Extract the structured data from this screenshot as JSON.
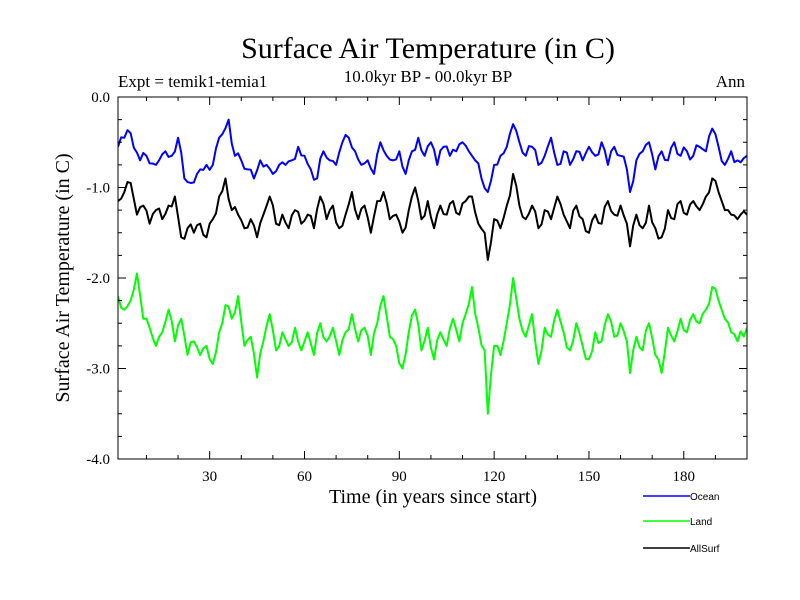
{
  "chart_data": {
    "type": "line",
    "title": "Surface Air Temperature (in C)",
    "subtitle_left": "Expt = temik1-temia1",
    "subtitle_center": "10.0kyr BP - 00.0kyr BP",
    "subtitle_right": "Ann",
    "xlabel": "Time (in years since start)",
    "ylabel": "Surface Air Temperature (in C)",
    "xlim": [
      1,
      200
    ],
    "ylim": [
      -4.0,
      0.0
    ],
    "xticks": [
      30,
      60,
      90,
      120,
      150,
      180
    ],
    "xtick_labels": [
      "30",
      "60",
      "90",
      "120",
      "150",
      "180"
    ],
    "yticks": [
      0.0,
      -1.0,
      -2.0,
      -3.0,
      -4.0
    ],
    "ytick_labels": [
      "0.0",
      "-1.0",
      "-2.0",
      "-3.0",
      "-4.0"
    ],
    "grid": false,
    "legend_position": "bottom-right",
    "series": [
      {
        "name": "Ocean",
        "color": "#0000ff",
        "key_points": [
          [
            1,
            -0.55
          ],
          [
            3,
            -0.45
          ],
          [
            5,
            -0.4
          ],
          [
            8,
            -0.7
          ],
          [
            10,
            -0.65
          ],
          [
            13,
            -0.75
          ],
          [
            16,
            -0.6
          ],
          [
            18,
            -0.65
          ],
          [
            20,
            -0.45
          ],
          [
            22,
            -0.9
          ],
          [
            24,
            -0.95
          ],
          [
            27,
            -0.8
          ],
          [
            29,
            -0.75
          ],
          [
            31,
            -0.75
          ],
          [
            33,
            -0.45
          ],
          [
            36,
            -0.25
          ],
          [
            38,
            -0.65
          ],
          [
            40,
            -0.7
          ],
          [
            42,
            -0.8
          ],
          [
            44,
            -0.9
          ],
          [
            46,
            -0.7
          ],
          [
            48,
            -0.75
          ],
          [
            50,
            -0.85
          ],
          [
            52,
            -0.75
          ],
          [
            54,
            -0.75
          ],
          [
            56,
            -0.7
          ],
          [
            58,
            -0.55
          ],
          [
            60,
            -0.65
          ],
          [
            62,
            -0.8
          ],
          [
            64,
            -0.9
          ],
          [
            66,
            -0.6
          ],
          [
            68,
            -0.7
          ],
          [
            70,
            -0.75
          ],
          [
            72,
            -0.5
          ],
          [
            74,
            -0.45
          ],
          [
            76,
            -0.6
          ],
          [
            78,
            -0.75
          ],
          [
            80,
            -0.7
          ],
          [
            82,
            -0.85
          ],
          [
            84,
            -0.5
          ],
          [
            86,
            -0.65
          ],
          [
            88,
            -0.7
          ],
          [
            90,
            -0.6
          ],
          [
            92,
            -0.85
          ],
          [
            94,
            -0.6
          ],
          [
            96,
            -0.45
          ],
          [
            98,
            -0.65
          ],
          [
            100,
            -0.5
          ],
          [
            102,
            -0.75
          ],
          [
            104,
            -0.55
          ],
          [
            106,
            -0.65
          ],
          [
            108,
            -0.6
          ],
          [
            110,
            -0.5
          ],
          [
            112,
            -0.6
          ],
          [
            114,
            -0.7
          ],
          [
            116,
            -0.9
          ],
          [
            118,
            -1.05
          ],
          [
            120,
            -0.75
          ],
          [
            122,
            -0.65
          ],
          [
            124,
            -0.55
          ],
          [
            126,
            -0.3
          ],
          [
            128,
            -0.5
          ],
          [
            130,
            -0.65
          ],
          [
            132,
            -0.55
          ],
          [
            134,
            -0.75
          ],
          [
            136,
            -0.65
          ],
          [
            138,
            -0.45
          ],
          [
            140,
            -0.75
          ],
          [
            142,
            -0.6
          ],
          [
            144,
            -0.75
          ],
          [
            146,
            -0.6
          ],
          [
            148,
            -0.7
          ],
          [
            150,
            -0.55
          ],
          [
            152,
            -0.65
          ],
          [
            154,
            -0.5
          ],
          [
            156,
            -0.75
          ],
          [
            158,
            -0.55
          ],
          [
            160,
            -0.65
          ],
          [
            162,
            -0.8
          ],
          [
            163,
            -1.05
          ],
          [
            165,
            -0.7
          ],
          [
            167,
            -0.6
          ],
          [
            169,
            -0.5
          ],
          [
            171,
            -0.8
          ],
          [
            173,
            -0.6
          ],
          [
            175,
            -0.7
          ],
          [
            177,
            -0.5
          ],
          [
            179,
            -0.65
          ],
          [
            181,
            -0.6
          ],
          [
            183,
            -0.65
          ],
          [
            185,
            -0.55
          ],
          [
            187,
            -0.6
          ],
          [
            189,
            -0.35
          ],
          [
            191,
            -0.55
          ],
          [
            193,
            -0.75
          ],
          [
            195,
            -0.6
          ],
          [
            197,
            -0.7
          ],
          [
            200,
            -0.65
          ]
        ]
      },
      {
        "name": "Land",
        "color": "#00ff00",
        "key_points": [
          [
            1,
            -2.2
          ],
          [
            3,
            -2.35
          ],
          [
            5,
            -2.25
          ],
          [
            7,
            -1.95
          ],
          [
            9,
            -2.45
          ],
          [
            11,
            -2.55
          ],
          [
            13,
            -2.75
          ],
          [
            15,
            -2.6
          ],
          [
            17,
            -2.35
          ],
          [
            19,
            -2.7
          ],
          [
            21,
            -2.45
          ],
          [
            23,
            -2.85
          ],
          [
            25,
            -2.7
          ],
          [
            27,
            -2.85
          ],
          [
            29,
            -2.75
          ],
          [
            31,
            -2.95
          ],
          [
            33,
            -2.6
          ],
          [
            35,
            -2.3
          ],
          [
            37,
            -2.45
          ],
          [
            39,
            -2.2
          ],
          [
            41,
            -2.75
          ],
          [
            43,
            -2.65
          ],
          [
            45,
            -3.1
          ],
          [
            47,
            -2.7
          ],
          [
            49,
            -2.4
          ],
          [
            51,
            -2.8
          ],
          [
            53,
            -2.6
          ],
          [
            55,
            -2.75
          ],
          [
            57,
            -2.55
          ],
          [
            59,
            -2.8
          ],
          [
            61,
            -2.6
          ],
          [
            63,
            -2.85
          ],
          [
            65,
            -2.5
          ],
          [
            67,
            -2.7
          ],
          [
            69,
            -2.55
          ],
          [
            71,
            -2.85
          ],
          [
            73,
            -2.6
          ],
          [
            75,
            -2.4
          ],
          [
            77,
            -2.7
          ],
          [
            79,
            -2.55
          ],
          [
            81,
            -2.85
          ],
          [
            83,
            -2.5
          ],
          [
            85,
            -2.2
          ],
          [
            87,
            -2.65
          ],
          [
            89,
            -2.75
          ],
          [
            91,
            -3.0
          ],
          [
            93,
            -2.6
          ],
          [
            95,
            -2.35
          ],
          [
            97,
            -2.8
          ],
          [
            99,
            -2.55
          ],
          [
            101,
            -2.9
          ],
          [
            103,
            -2.6
          ],
          [
            105,
            -2.75
          ],
          [
            107,
            -2.45
          ],
          [
            109,
            -2.7
          ],
          [
            111,
            -2.4
          ],
          [
            113,
            -2.1
          ],
          [
            115,
            -2.55
          ],
          [
            117,
            -2.8
          ],
          [
            118,
            -3.5
          ],
          [
            120,
            -2.75
          ],
          [
            122,
            -2.85
          ],
          [
            124,
            -2.5
          ],
          [
            126,
            -2.0
          ],
          [
            128,
            -2.45
          ],
          [
            130,
            -2.65
          ],
          [
            132,
            -2.4
          ],
          [
            134,
            -2.95
          ],
          [
            136,
            -2.55
          ],
          [
            138,
            -2.65
          ],
          [
            140,
            -2.35
          ],
          [
            142,
            -2.6
          ],
          [
            144,
            -2.8
          ],
          [
            146,
            -2.5
          ],
          [
            148,
            -2.75
          ],
          [
            150,
            -2.9
          ],
          [
            152,
            -2.6
          ],
          [
            154,
            -2.7
          ],
          [
            156,
            -2.4
          ],
          [
            158,
            -2.65
          ],
          [
            160,
            -2.5
          ],
          [
            162,
            -2.7
          ],
          [
            163,
            -3.05
          ],
          [
            165,
            -2.65
          ],
          [
            167,
            -2.8
          ],
          [
            169,
            -2.5
          ],
          [
            171,
            -2.85
          ],
          [
            173,
            -3.05
          ],
          [
            175,
            -2.55
          ],
          [
            177,
            -2.7
          ],
          [
            179,
            -2.45
          ],
          [
            181,
            -2.6
          ],
          [
            183,
            -2.4
          ],
          [
            185,
            -2.5
          ],
          [
            187,
            -2.35
          ],
          [
            189,
            -2.1
          ],
          [
            191,
            -2.25
          ],
          [
            193,
            -2.45
          ],
          [
            195,
            -2.6
          ],
          [
            197,
            -2.7
          ],
          [
            200,
            -2.55
          ]
        ]
      },
      {
        "name": "AllSurf",
        "color": "#000000",
        "key_points": [
          [
            1,
            -1.15
          ],
          [
            3,
            -1.05
          ],
          [
            5,
            -0.95
          ],
          [
            7,
            -1.3
          ],
          [
            9,
            -1.2
          ],
          [
            11,
            -1.4
          ],
          [
            13,
            -1.25
          ],
          [
            15,
            -1.35
          ],
          [
            17,
            -1.2
          ],
          [
            19,
            -1.1
          ],
          [
            21,
            -1.55
          ],
          [
            23,
            -1.45
          ],
          [
            25,
            -1.5
          ],
          [
            27,
            -1.4
          ],
          [
            29,
            -1.55
          ],
          [
            31,
            -1.35
          ],
          [
            33,
            -1.1
          ],
          [
            35,
            -0.9
          ],
          [
            37,
            -1.25
          ],
          [
            39,
            -1.3
          ],
          [
            41,
            -1.45
          ],
          [
            43,
            -1.35
          ],
          [
            45,
            -1.55
          ],
          [
            47,
            -1.3
          ],
          [
            49,
            -1.1
          ],
          [
            51,
            -1.4
          ],
          [
            53,
            -1.3
          ],
          [
            55,
            -1.45
          ],
          [
            57,
            -1.25
          ],
          [
            59,
            -1.4
          ],
          [
            61,
            -1.3
          ],
          [
            63,
            -1.45
          ],
          [
            65,
            -1.1
          ],
          [
            67,
            -1.35
          ],
          [
            69,
            -1.2
          ],
          [
            71,
            -1.45
          ],
          [
            73,
            -1.3
          ],
          [
            75,
            -1.05
          ],
          [
            77,
            -1.35
          ],
          [
            79,
            -1.2
          ],
          [
            81,
            -1.5
          ],
          [
            83,
            -1.15
          ],
          [
            85,
            -1.05
          ],
          [
            87,
            -1.35
          ],
          [
            89,
            -1.3
          ],
          [
            91,
            -1.5
          ],
          [
            93,
            -1.25
          ],
          [
            95,
            -1.0
          ],
          [
            97,
            -1.35
          ],
          [
            99,
            -1.15
          ],
          [
            101,
            -1.45
          ],
          [
            103,
            -1.2
          ],
          [
            105,
            -1.3
          ],
          [
            107,
            -1.15
          ],
          [
            109,
            -1.3
          ],
          [
            111,
            -1.15
          ],
          [
            113,
            -1.1
          ],
          [
            115,
            -1.4
          ],
          [
            117,
            -1.5
          ],
          [
            118,
            -1.8
          ],
          [
            120,
            -1.35
          ],
          [
            122,
            -1.45
          ],
          [
            124,
            -1.2
          ],
          [
            126,
            -0.85
          ],
          [
            128,
            -1.2
          ],
          [
            130,
            -1.35
          ],
          [
            132,
            -1.2
          ],
          [
            134,
            -1.45
          ],
          [
            136,
            -1.25
          ],
          [
            138,
            -1.35
          ],
          [
            140,
            -1.1
          ],
          [
            142,
            -1.3
          ],
          [
            144,
            -1.45
          ],
          [
            146,
            -1.2
          ],
          [
            148,
            -1.35
          ],
          [
            150,
            -1.5
          ],
          [
            152,
            -1.3
          ],
          [
            154,
            -1.4
          ],
          [
            156,
            -1.15
          ],
          [
            158,
            -1.3
          ],
          [
            160,
            -1.2
          ],
          [
            162,
            -1.4
          ],
          [
            163,
            -1.65
          ],
          [
            165,
            -1.3
          ],
          [
            167,
            -1.45
          ],
          [
            169,
            -1.2
          ],
          [
            171,
            -1.45
          ],
          [
            173,
            -1.55
          ],
          [
            175,
            -1.25
          ],
          [
            177,
            -1.35
          ],
          [
            179,
            -1.15
          ],
          [
            181,
            -1.3
          ],
          [
            183,
            -1.15
          ],
          [
            185,
            -1.25
          ],
          [
            187,
            -1.1
          ],
          [
            189,
            -0.9
          ],
          [
            191,
            -1.05
          ],
          [
            193,
            -1.25
          ],
          [
            195,
            -1.3
          ],
          [
            197,
            -1.35
          ],
          [
            200,
            -1.3
          ]
        ]
      }
    ]
  }
}
